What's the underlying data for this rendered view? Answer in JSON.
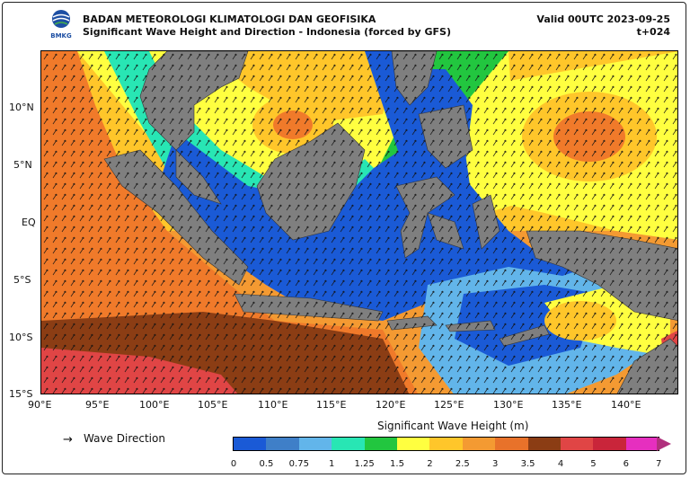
{
  "header": {
    "agency": "BADAN METEOROLOGI KLIMATOLOGI DAN GEOFISIKA",
    "product": "Significant Wave Height and Direction - Indonesia (forced by GFS)",
    "valid": "Valid 00UTC 2023-09-25",
    "lead": "t+024",
    "logo_text": "BMKG"
  },
  "axes": {
    "lat_labels": [
      "10°N",
      "5°N",
      "EQ",
      "5°S",
      "10°S",
      "15°S"
    ],
    "lon_labels": [
      "90°E",
      "95°E",
      "100°E",
      "105°E",
      "110°E",
      "115°E",
      "120°E",
      "125°E",
      "130°E",
      "135°E",
      "140°E"
    ]
  },
  "legend": {
    "arrow_label": "Wave Direction",
    "colorbar_title": "Significant Wave Height (m)",
    "ticks": [
      "0",
      "0.5",
      "0.75",
      "1",
      "1.25",
      "1.5",
      "2",
      "2.5",
      "3",
      "3.5",
      "4",
      "5",
      "6",
      "7"
    ],
    "colors": [
      "#1a5ad6",
      "#3f7fc8",
      "#62b5ea",
      "#28e6b4",
      "#22c63f",
      "#ffff40",
      "#ffc62a",
      "#f49a32",
      "#e8722a",
      "#8b3d14",
      "#e04545",
      "#c9253a",
      "#e62fbf",
      "#b0307d"
    ]
  },
  "map_colors": {
    "land": "#7f7f7f",
    "very_high": "#8b3d14",
    "high": "#f07a2a",
    "mid_high": "#f49a32",
    "mid": "#ffc62a",
    "yellow": "#ffff40",
    "green": "#22c63f",
    "teal": "#28e6b4",
    "light_blue": "#62b5ea",
    "blue": "#1a5ad6",
    "red": "#e04545"
  }
}
